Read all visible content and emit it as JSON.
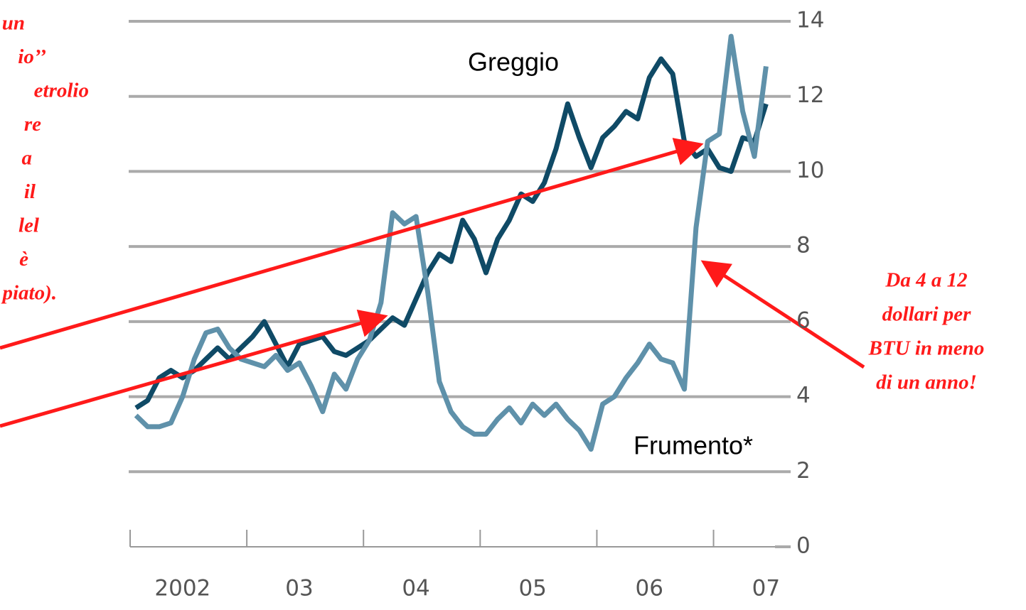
{
  "chart_data": {
    "type": "line",
    "x": [
      2002.05,
      2002.15,
      2002.25,
      2002.35,
      2002.45,
      2002.55,
      2002.65,
      2002.75,
      2002.85,
      2002.95,
      2003.05,
      2003.15,
      2003.25,
      2003.35,
      2003.45,
      2003.55,
      2003.65,
      2003.75,
      2003.85,
      2003.95,
      2004.05,
      2004.15,
      2004.25,
      2004.35,
      2004.45,
      2004.55,
      2004.65,
      2004.75,
      2004.85,
      2004.95,
      2005.05,
      2005.15,
      2005.25,
      2005.35,
      2005.45,
      2005.55,
      2005.65,
      2005.75,
      2005.85,
      2005.95,
      2006.05,
      2006.15,
      2006.25,
      2006.35,
      2006.45,
      2006.55,
      2006.65,
      2006.75,
      2006.85,
      2006.95,
      2007.05,
      2007.15,
      2007.25,
      2007.35,
      2007.45
    ],
    "series": [
      {
        "name": "Greggio",
        "color": "#0f4a66",
        "values": [
          3.7,
          3.9,
          4.5,
          4.7,
          4.5,
          4.7,
          5.0,
          5.3,
          5.0,
          5.3,
          5.6,
          6.0,
          5.4,
          4.8,
          5.4,
          5.5,
          5.6,
          5.2,
          5.1,
          5.3,
          5.5,
          5.8,
          6.1,
          5.9,
          6.6,
          7.3,
          7.8,
          7.6,
          8.7,
          8.2,
          7.3,
          8.2,
          8.7,
          9.4,
          9.2,
          9.7,
          10.6,
          11.8,
          10.9,
          10.1,
          10.9,
          11.2,
          11.6,
          11.4,
          12.5,
          13.0,
          12.6,
          10.8,
          10.4,
          10.6,
          10.1,
          10.0,
          10.9,
          10.8,
          11.8
        ]
      },
      {
        "name": "Frumento*",
        "color": "#5f91aa",
        "values": [
          3.5,
          3.2,
          3.2,
          3.3,
          4.0,
          5.0,
          5.7,
          5.8,
          5.3,
          5.0,
          4.9,
          4.8,
          5.1,
          4.7,
          4.9,
          4.3,
          3.6,
          4.6,
          4.2,
          5.0,
          5.5,
          6.5,
          8.9,
          8.6,
          8.8,
          6.8,
          4.4,
          3.6,
          3.2,
          3.0,
          3.0,
          3.4,
          3.7,
          3.3,
          3.8,
          3.5,
          3.8,
          3.4,
          3.1,
          2.6,
          3.8,
          4.0,
          4.5,
          4.9,
          5.4,
          5.0,
          4.9,
          4.2,
          8.5,
          10.8,
          11.0,
          13.6,
          11.6,
          10.4,
          12.8
        ]
      }
    ],
    "xlim": [
      2002,
      2007.6
    ],
    "xticks": [
      {
        "value": 2002,
        "label": "2002"
      },
      {
        "value": 2003,
        "label": "03"
      },
      {
        "value": 2004,
        "label": "04"
      },
      {
        "value": 2005,
        "label": "05"
      },
      {
        "value": 2006,
        "label": "06"
      },
      {
        "value": 2007,
        "label": "07"
      }
    ],
    "ylim": [
      0,
      14
    ],
    "yticks": [
      0,
      2,
      4,
      6,
      8,
      10,
      12,
      14
    ],
    "grid": true,
    "annotations": {
      "left_text": [
        "un",
        "io’’",
        "etrolio",
        "re",
        "a",
        "il",
        "lel",
        "è",
        "piato)."
      ],
      "right_text": [
        "Da 4 a 12",
        "dollari per",
        "BTU in meno",
        "di un anno!"
      ]
    }
  }
}
